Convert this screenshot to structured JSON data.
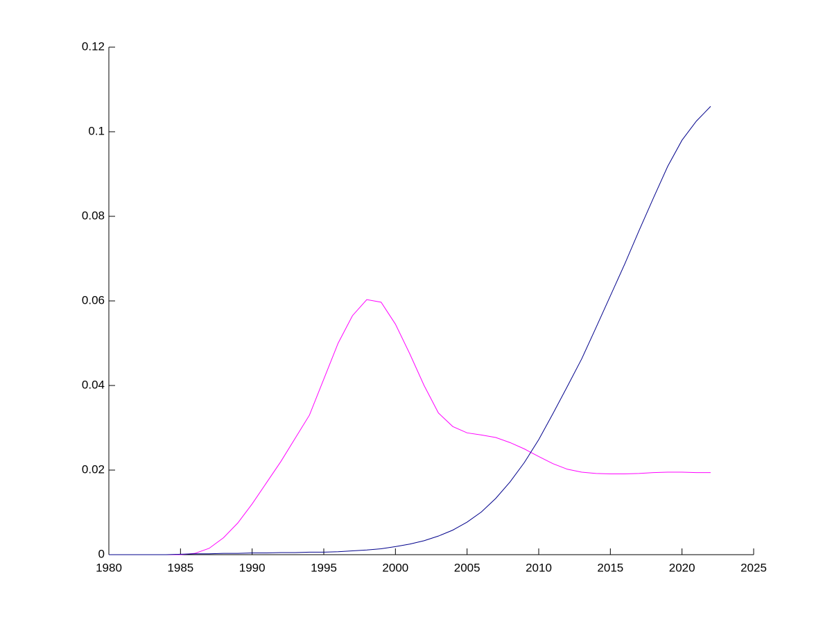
{
  "chart_data": {
    "type": "line",
    "x": [
      1980,
      1981,
      1982,
      1983,
      1984,
      1985,
      1986,
      1987,
      1988,
      1989,
      1990,
      1991,
      1992,
      1993,
      1994,
      1995,
      1996,
      1997,
      1998,
      1999,
      2000,
      2001,
      2002,
      2003,
      2004,
      2005,
      2006,
      2007,
      2008,
      2009,
      2010,
      2011,
      2012,
      2013,
      2014,
      2015,
      2016,
      2017,
      2018,
      2019,
      2020,
      2021,
      2022
    ],
    "series": [
      {
        "color": "#ff00ff",
        "values": [
          0,
          0,
          0,
          0,
          0,
          0,
          0.0003,
          0.0015,
          0.004,
          0.0075,
          0.012,
          0.017,
          0.022,
          0.0275,
          0.033,
          0.0415,
          0.05,
          0.0565,
          0.0603,
          0.0597,
          0.0545,
          0.0475,
          0.04,
          0.0335,
          0.0303,
          0.0288,
          0.0283,
          0.0277,
          0.0265,
          0.025,
          0.0232,
          0.0215,
          0.0202,
          0.0195,
          0.0192,
          0.0191,
          0.0191,
          0.0192,
          0.0194,
          0.0195,
          0.0195,
          0.0194,
          0.0194
        ]
      },
      {
        "color": "#00008b",
        "values": [
          0,
          0,
          0,
          0,
          0,
          0.0001,
          0.0002,
          0.0002,
          0.0003,
          0.0003,
          0.0004,
          0.0004,
          0.0005,
          0.0005,
          0.0006,
          0.0006,
          0.0007,
          0.0009,
          0.0011,
          0.0014,
          0.0019,
          0.0025,
          0.0033,
          0.0044,
          0.0058,
          0.0077,
          0.0101,
          0.0133,
          0.0172,
          0.0218,
          0.0272,
          0.0334,
          0.0398,
          0.0463,
          0.0537,
          0.0612,
          0.0687,
          0.0766,
          0.0843,
          0.0918,
          0.098,
          0.1025,
          0.106
        ]
      }
    ],
    "xlim": [
      1980,
      2025
    ],
    "xticks": [
      1980,
      1985,
      1990,
      1995,
      2000,
      2005,
      2010,
      2015,
      2020,
      2025
    ],
    "ylim": [
      0,
      0.12
    ],
    "yticks": [
      0,
      0.02,
      0.04,
      0.06,
      0.08,
      0.1,
      0.12
    ],
    "grid": false
  }
}
